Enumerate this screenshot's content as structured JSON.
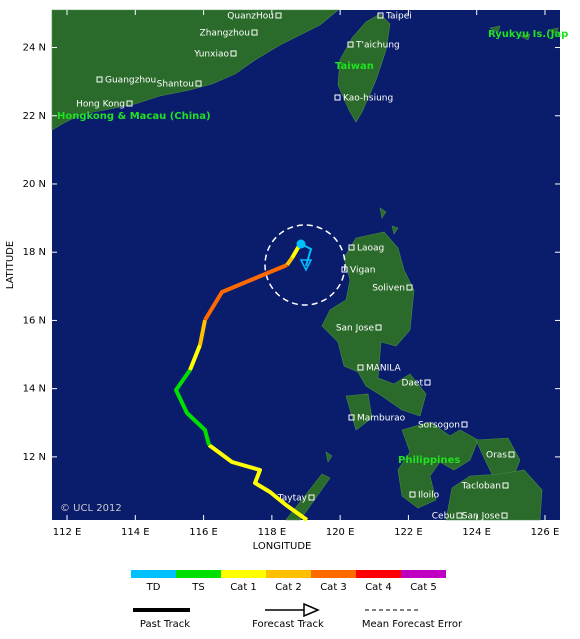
{
  "map": {
    "lon_range": [
      111.56,
      126.44
    ],
    "lat_range": [
      10.15,
      25.1
    ],
    "lon_ticks": [
      {
        "value": 112,
        "label": "112 E"
      },
      {
        "value": 114,
        "label": "114 E"
      },
      {
        "value": 116,
        "label": "116 E"
      },
      {
        "value": 118,
        "label": "118 E"
      },
      {
        "value": 120,
        "label": "120 E"
      },
      {
        "value": 122,
        "label": "122 E"
      },
      {
        "value": 124,
        "label": "124 E"
      },
      {
        "value": 126,
        "label": "126 E"
      }
    ],
    "lat_ticks": [
      {
        "value": 12,
        "label": "12 N"
      },
      {
        "value": 14,
        "label": "14 N"
      },
      {
        "value": 16,
        "label": "16 N"
      },
      {
        "value": 18,
        "label": "18 N"
      },
      {
        "value": 20,
        "label": "20 N"
      },
      {
        "value": 22,
        "label": "22 N"
      },
      {
        "value": 24,
        "label": "24 N"
      }
    ],
    "x_axis_label": "LONGITUDE",
    "y_axis_label": "LATITUDE",
    "copyright": "© UCL 2012"
  },
  "places": [
    "QuanzHou",
    "Taipei",
    "Zhangzhou",
    "T'aichung",
    "Yunxiao",
    "Guangzhou",
    "Shantou",
    "Hong Kong",
    "Kao-hsiung",
    "Laoag",
    "Vigan",
    "Soliven",
    "San Jose",
    "MANILA",
    "Daet",
    "Mamburao",
    "Sorsogon",
    "Oras",
    "Tacloban",
    "Iloilo",
    "Taytay",
    "Cebu",
    "San Jose"
  ],
  "regions": [
    "Taiwan",
    "Hongkong & Macau (China)",
    "Philippines",
    "Ryukyu Is.(Jap"
  ],
  "legend": {
    "categories": [
      {
        "label": "TD",
        "color": "#00c0ff"
      },
      {
        "label": "TS",
        "color": "#00e000"
      },
      {
        "label": "Cat 1",
        "color": "#ffff00"
      },
      {
        "label": "Cat 2",
        "color": "#ffc000"
      },
      {
        "label": "Cat 3",
        "color": "#ff6a00"
      },
      {
        "label": "Cat 4",
        "color": "#ff0000"
      },
      {
        "label": "Cat 5",
        "color": "#c000c0"
      }
    ],
    "track_types": [
      "Past Track",
      "Forecast Track",
      "Mean Forecast Error"
    ]
  }
}
